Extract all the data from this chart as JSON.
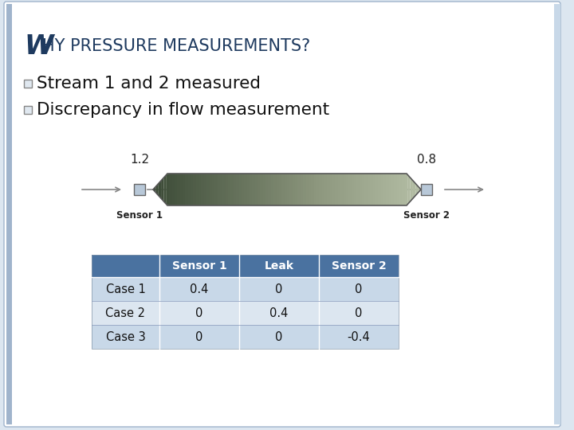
{
  "title_W": "W",
  "title_rest": "HY PRESSURE MEASUREMENTS?",
  "bullet1": "Stream 1 and 2 measured",
  "bullet2": "Discrepancy in flow measurement",
  "bg_color": "#dce6f0",
  "slide_bg": "#ffffff",
  "left_accent_color": "#a0b4cc",
  "right_accent_color": "#c8d8e8",
  "title_color": "#1e3a5f",
  "bullet_color": "#111111",
  "sensor1_label": "1.2",
  "sensor2_label": "0.8",
  "sensor1_name": "Sensor 1",
  "sensor2_name": "Sensor 2",
  "table_header_bg": "#4a72a0",
  "table_header_text": "#ffffff",
  "table_row_bg_odd": "#c8d8e8",
  "table_row_bg_even": "#dce6f0",
  "table_cols": [
    "",
    "Sensor 1",
    "Leak",
    "Sensor 2"
  ],
  "table_rows": [
    [
      "Case 1",
      "0.4",
      "0",
      "0"
    ],
    [
      "Case 2",
      "0",
      "0.4",
      "0"
    ],
    [
      "Case 3",
      "0",
      "0",
      "-0.4"
    ]
  ]
}
